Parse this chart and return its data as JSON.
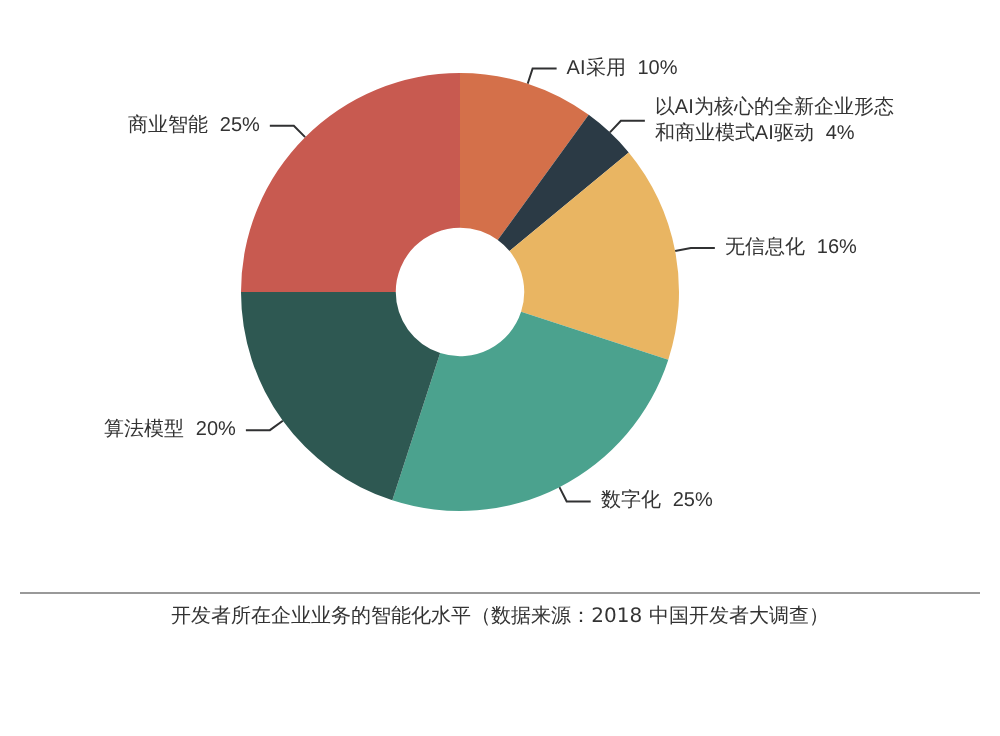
{
  "chart_data": {
    "type": "donut",
    "categories": [
      "AI采用",
      "以AI为核心的全新企业形态和商业模式AI驱动",
      "无信息化",
      "数字化",
      "算法模型",
      "商业智能"
    ],
    "values": [
      10,
      4,
      16,
      25,
      20,
      25
    ],
    "colors": [
      "#d4704a",
      "#2b3a45",
      "#e9b562",
      "#4ba28e",
      "#2e5852",
      "#c85a50"
    ],
    "value_labels": [
      "10%",
      "4%",
      "16%",
      "25%",
      "20%",
      "25%"
    ],
    "legend": false,
    "annotations": [
      "开发者所在企业业务的智能化水平（数据来源：2018 中国开发者大调查）"
    ]
  }
}
